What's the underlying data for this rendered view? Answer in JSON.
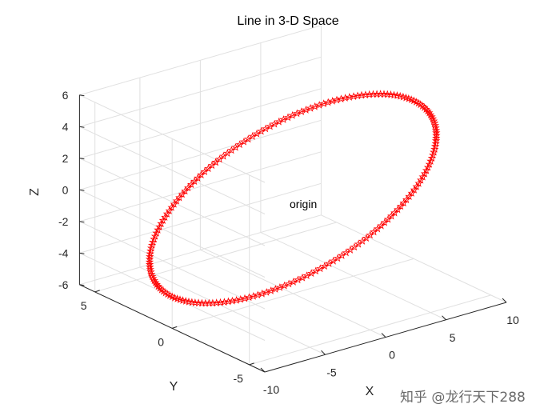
{
  "chart_data": {
    "type": "line",
    "title": "Line in 3-D Space",
    "xlabel": "X",
    "ylabel": "Y",
    "zlabel": "Z",
    "xlim": [
      -10,
      10
    ],
    "ylim": [
      -6,
      6
    ],
    "zlim": [
      -6,
      6
    ],
    "xticks": [
      "-10",
      "-5",
      "0",
      "5",
      "10"
    ],
    "yticks": [
      "5",
      "0",
      "-5"
    ],
    "zticks": [
      "6",
      "4",
      "2",
      "0",
      "-2",
      "-4",
      "-6"
    ],
    "grid": true,
    "series": [
      {
        "marker": "pentagram",
        "color": "#ff0000",
        "curve": "x = 10*sin(t), y = 10*cos(t)*0.5, z = 4*sin(t), t in [0, 2*pi]",
        "x_range": [
          -10,
          10
        ],
        "z_range": [
          -4,
          4
        ],
        "points": 200
      }
    ],
    "annotations": [
      {
        "text": "origin",
        "x": 0,
        "y": 0,
        "z": 0
      }
    ]
  },
  "watermark": "知乎 @龙行天下288",
  "colors": {
    "line": "#ff0000",
    "grid": "#e0e0e0",
    "axis": "#262626"
  }
}
